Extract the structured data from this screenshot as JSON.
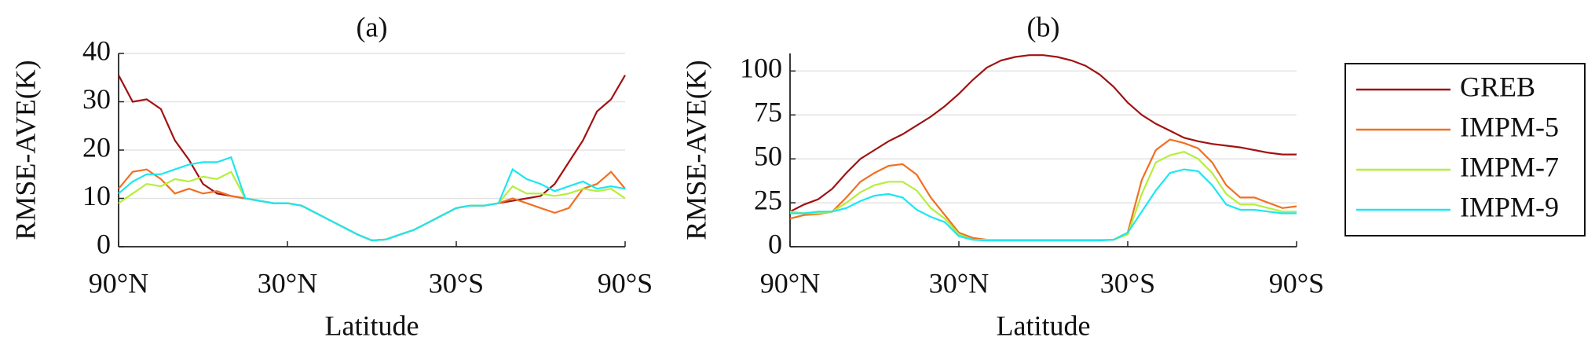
{
  "chart_data": [
    {
      "type": "line",
      "title": "(a)",
      "xlabel": "Latitude",
      "ylabel": "RMSE-AVE(K)",
      "x": [
        90,
        85,
        80,
        75,
        70,
        65,
        60,
        55,
        50,
        45,
        40,
        35,
        30,
        25,
        20,
        15,
        10,
        5,
        0,
        -5,
        -10,
        -15,
        -20,
        -25,
        -30,
        -35,
        -40,
        -45,
        -50,
        -55,
        -60,
        -65,
        -70,
        -75,
        -80,
        -85,
        -90
      ],
      "xlim": [
        90,
        -90
      ],
      "xticks": [
        {
          "value": 90,
          "label": "90°N"
        },
        {
          "value": 30,
          "label": "30°N"
        },
        {
          "value": -30,
          "label": "30°S"
        },
        {
          "value": -90,
          "label": "90°S"
        }
      ],
      "ylim": [
        0,
        40
      ],
      "yticks": [
        0,
        10,
        20,
        30,
        40
      ],
      "grid": true,
      "series": [
        {
          "name": "GREB",
          "color": "#a01212",
          "values": [
            35.5,
            30,
            30.5,
            28.5,
            22,
            18,
            13,
            11,
            10.5,
            10,
            9.5,
            9,
            9,
            8.5,
            7,
            5.5,
            4,
            2.5,
            1.3,
            1.5,
            2.5,
            3.5,
            5,
            6.5,
            8,
            8.5,
            8.5,
            9,
            9.5,
            10,
            10.5,
            13,
            17.5,
            22,
            28,
            30.5,
            35.5
          ]
        },
        {
          "name": "IMPM-5",
          "color": "#f07020",
          "values": [
            12,
            15.5,
            16,
            14,
            11,
            12,
            11,
            11.5,
            10.5,
            10,
            9.5,
            9,
            9,
            8.5,
            7,
            5.5,
            4,
            2.5,
            1.3,
            1.5,
            2.5,
            3.5,
            5,
            6.5,
            8,
            8.5,
            8.5,
            9,
            10,
            9,
            8,
            7,
            8,
            12,
            13,
            15.5,
            12
          ]
        },
        {
          "name": "IMPM-7",
          "color": "#b5ee3c",
          "values": [
            9,
            11,
            13,
            12.5,
            14,
            13.5,
            14.5,
            14,
            15.5,
            10,
            9.5,
            9,
            9,
            8.5,
            7,
            5.5,
            4,
            2.5,
            1.3,
            1.5,
            2.5,
            3.5,
            5,
            6.5,
            8,
            8.5,
            8.5,
            9,
            12.5,
            11,
            11,
            10.5,
            11,
            12,
            11.5,
            12,
            10
          ]
        },
        {
          "name": "IMPM-9",
          "color": "#1ee6f0",
          "values": [
            11,
            13.5,
            15,
            15,
            16,
            17,
            17.5,
            17.5,
            18.5,
            10,
            9.5,
            9,
            9,
            8.5,
            7,
            5.5,
            4,
            2.5,
            1.3,
            1.5,
            2.5,
            3.5,
            5,
            6.5,
            8,
            8.5,
            8.5,
            9,
            16,
            14,
            13,
            11.5,
            12.5,
            13.5,
            12,
            12.5,
            12
          ]
        }
      ]
    },
    {
      "type": "line",
      "title": "(b)",
      "xlabel": "Latitude",
      "ylabel": "RMSE-AVE(K)",
      "x": [
        90,
        85,
        80,
        75,
        70,
        65,
        60,
        55,
        50,
        45,
        40,
        35,
        30,
        25,
        20,
        15,
        10,
        5,
        0,
        -5,
        -10,
        -15,
        -20,
        -25,
        -30,
        -35,
        -40,
        -45,
        -50,
        -55,
        -60,
        -65,
        -70,
        -75,
        -80,
        -85,
        -90
      ],
      "xlim": [
        90,
        -90
      ],
      "xticks": [
        {
          "value": 90,
          "label": "90°N"
        },
        {
          "value": 30,
          "label": "30°N"
        },
        {
          "value": -30,
          "label": "30°S"
        },
        {
          "value": -90,
          "label": "90°S"
        }
      ],
      "ylim": [
        0,
        110
      ],
      "yticks": [
        0,
        25,
        50,
        75,
        100
      ],
      "grid": true,
      "legend": "right",
      "series": [
        {
          "name": "GREB",
          "color": "#a01212",
          "values": [
            20,
            24,
            27,
            33,
            42,
            50,
            55,
            60,
            64,
            69,
            74,
            80,
            87,
            95,
            102,
            106,
            108,
            109,
            109,
            108,
            106,
            103,
            98,
            91,
            82,
            75,
            70,
            66,
            62,
            60,
            58.5,
            57.5,
            56.5,
            55,
            53.5,
            52.5,
            52.5
          ]
        },
        {
          "name": "IMPM-5",
          "color": "#f07020",
          "values": [
            16,
            18,
            18.5,
            20,
            28,
            37,
            42,
            46,
            47,
            41,
            28,
            18,
            8,
            5,
            4,
            4,
            4,
            4,
            4,
            4,
            4,
            4,
            4,
            4,
            8,
            38,
            55,
            61,
            59,
            56,
            48,
            35,
            28,
            28,
            25,
            22,
            23
          ]
        },
        {
          "name": "IMPM-7",
          "color": "#b5ee3c",
          "values": [
            20,
            19,
            19,
            20,
            25,
            31,
            35,
            37,
            37,
            32,
            22,
            16,
            7,
            4,
            4,
            4,
            4,
            4,
            4,
            4,
            4,
            4,
            4,
            4,
            7,
            30,
            48,
            52,
            54,
            50,
            42,
            30,
            24,
            24,
            22,
            20,
            20
          ]
        },
        {
          "name": "IMPM-9",
          "color": "#1ee6f0",
          "values": [
            19,
            19,
            20,
            20,
            22,
            26,
            29,
            30,
            28,
            21,
            17,
            14,
            6,
            4,
            3.5,
            3.5,
            3.5,
            3.5,
            3.5,
            3.5,
            3.5,
            3.5,
            3.5,
            4,
            8,
            20,
            32,
            42,
            44,
            43,
            35,
            24,
            21,
            21,
            20,
            19,
            19
          ]
        }
      ]
    }
  ]
}
